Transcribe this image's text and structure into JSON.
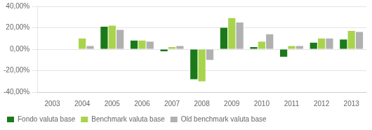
{
  "chart_data": {
    "type": "bar",
    "categories": [
      "2003",
      "2004",
      "2005",
      "2006",
      "2007",
      "2008",
      "2009",
      "2010",
      "2011",
      "2012",
      "2013"
    ],
    "series": [
      {
        "name": "Fondo valuta base",
        "color": "#1a7a1a",
        "values": [
          0.0,
          0.0,
          0.21,
          0.08,
          -0.02,
          -0.28,
          0.2,
          0.02,
          -0.07,
          0.06,
          0.09
        ]
      },
      {
        "name": "Benchmark valuta base",
        "color": "#a8d44d",
        "values": [
          0.0,
          0.1,
          0.22,
          0.08,
          0.02,
          -0.3,
          0.29,
          0.07,
          0.03,
          0.1,
          0.17
        ]
      },
      {
        "name": "Old benchmark valuta base",
        "color": "#b0b0b0",
        "values": [
          0.0,
          0.03,
          0.18,
          0.07,
          0.03,
          -0.1,
          0.25,
          0.14,
          0.03,
          0.1,
          0.16
        ]
      }
    ],
    "ylim": [
      -0.4,
      0.4
    ],
    "yticks": [
      {
        "value": -0.4,
        "label": "-40,00%"
      },
      {
        "value": -0.2,
        "label": "-20,00%"
      },
      {
        "value": 0.0,
        "label": "0,00%"
      },
      {
        "value": 0.2,
        "label": "20,00%"
      },
      {
        "value": 0.4,
        "label": "40,00%"
      }
    ],
    "grid": true,
    "legend": "bottom"
  }
}
